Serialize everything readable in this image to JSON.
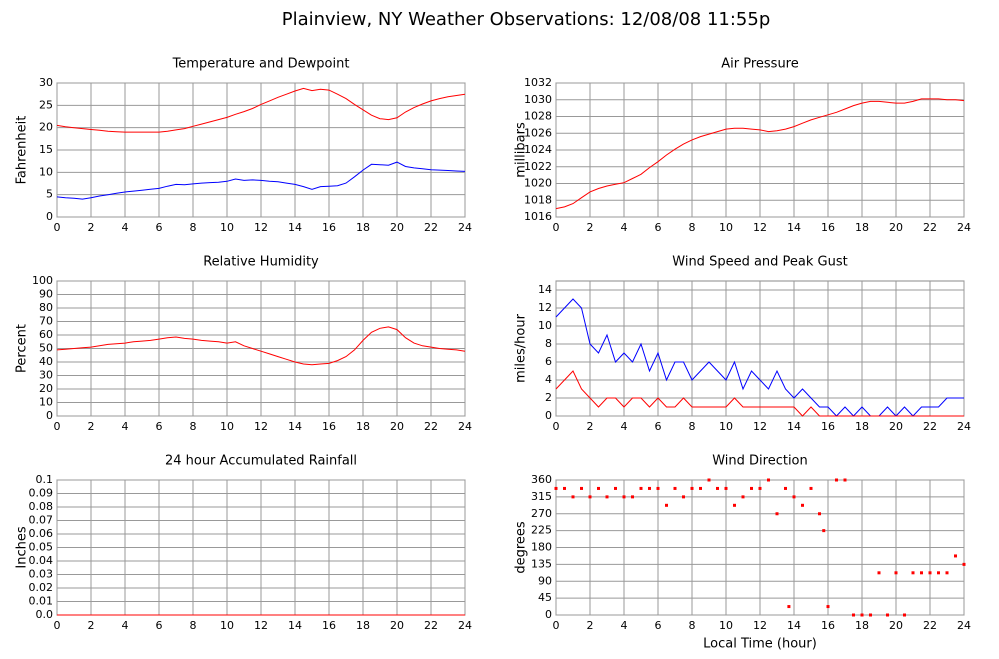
{
  "title": "Plainview, NY Weather Observations: 12/08/08 11:55p",
  "chart_data": [
    {
      "type": "line",
      "title": "Temperature and Dewpoint",
      "ylabel": "Fahrenheit",
      "grid": true,
      "xlim": [
        0,
        24
      ],
      "xticks": [
        0,
        2,
        4,
        6,
        8,
        10,
        12,
        14,
        16,
        18,
        20,
        22,
        24
      ],
      "ylim": [
        0,
        30
      ],
      "yticks": [
        0,
        5,
        10,
        15,
        20,
        25,
        30
      ],
      "x": [
        0,
        0.5,
        1,
        1.5,
        2,
        2.5,
        3,
        3.5,
        4,
        4.5,
        5,
        5.5,
        6,
        6.5,
        7,
        7.5,
        8,
        8.5,
        9,
        9.5,
        10,
        10.5,
        11,
        11.5,
        12,
        12.5,
        13,
        13.5,
        14,
        14.5,
        15,
        15.5,
        16,
        16.5,
        17,
        17.5,
        18,
        18.5,
        19,
        19.5,
        20,
        20.5,
        21,
        21.5,
        22,
        22.5,
        23,
        23.5,
        24
      ],
      "series": [
        {
          "color": "#ff0000",
          "values": [
            20.5,
            20.2,
            20,
            19.8,
            19.6,
            19.4,
            19.2,
            19.1,
            19,
            19,
            19,
            19,
            19,
            19.2,
            19.5,
            19.8,
            20.3,
            20.8,
            21.3,
            21.8,
            22.3,
            23,
            23.6,
            24.3,
            25.2,
            26,
            26.8,
            27.5,
            28.2,
            28.8,
            28.3,
            28.6,
            28.4,
            27.5,
            26.5,
            25.2,
            24,
            22.8,
            22,
            21.8,
            22.2,
            23.5,
            24.5,
            25.3,
            26,
            26.5,
            26.9,
            27.2,
            27.5
          ]
        },
        {
          "color": "#0000ff",
          "values": [
            4.5,
            4.3,
            4.2,
            4,
            4.3,
            4.7,
            5,
            5.3,
            5.6,
            5.8,
            6,
            6.2,
            6.4,
            6.9,
            7.3,
            7.2,
            7.4,
            7.6,
            7.7,
            7.8,
            8,
            8.5,
            8.2,
            8.3,
            8.2,
            8,
            7.9,
            7.6,
            7.3,
            6.8,
            6.2,
            6.8,
            6.9,
            7,
            7.6,
            9,
            10.5,
            11.8,
            11.7,
            11.6,
            12.3,
            11.3,
            11,
            10.8,
            10.6,
            10.5,
            10.4,
            10.3,
            10.2
          ]
        }
      ]
    },
    {
      "type": "line",
      "title": "Air Pressure",
      "ylabel": "millibars",
      "grid": true,
      "xlim": [
        0,
        24
      ],
      "xticks": [
        0,
        2,
        4,
        6,
        8,
        10,
        12,
        14,
        16,
        18,
        20,
        22,
        24
      ],
      "ylim": [
        1016,
        1032
      ],
      "yticks": [
        1016,
        1018,
        1020,
        1022,
        1024,
        1026,
        1028,
        1030,
        1032
      ],
      "x": [
        0,
        0.5,
        1,
        1.5,
        2,
        2.5,
        3,
        3.5,
        4,
        4.5,
        5,
        5.5,
        6,
        6.5,
        7,
        7.5,
        8,
        8.5,
        9,
        9.5,
        10,
        10.5,
        11,
        11.5,
        12,
        12.5,
        13,
        13.5,
        14,
        14.5,
        15,
        15.5,
        16,
        16.5,
        17,
        17.5,
        18,
        18.5,
        19,
        19.5,
        20,
        20.5,
        21,
        21.5,
        22,
        22.5,
        23,
        23.5,
        24
      ],
      "series": [
        {
          "color": "#ff0000",
          "values": [
            1017,
            1017.2,
            1017.6,
            1018.3,
            1019,
            1019.4,
            1019.7,
            1019.9,
            1020.1,
            1020.6,
            1021.1,
            1021.9,
            1022.6,
            1023.4,
            1024.1,
            1024.7,
            1025.2,
            1025.6,
            1025.9,
            1026.2,
            1026.5,
            1026.6,
            1026.6,
            1026.5,
            1026.4,
            1026.2,
            1026.3,
            1026.5,
            1026.8,
            1027.2,
            1027.6,
            1027.9,
            1028.2,
            1028.5,
            1028.9,
            1029.3,
            1029.6,
            1029.8,
            1029.8,
            1029.7,
            1029.6,
            1029.6,
            1029.8,
            1030.1,
            1030.1,
            1030.1,
            1030,
            1030,
            1029.9
          ]
        }
      ]
    },
    {
      "type": "line",
      "title": "Relative Humidity",
      "ylabel": "Percent",
      "grid": true,
      "xlim": [
        0,
        24
      ],
      "xticks": [
        0,
        2,
        4,
        6,
        8,
        10,
        12,
        14,
        16,
        18,
        20,
        22,
        24
      ],
      "ylim": [
        0,
        100
      ],
      "yticks": [
        0,
        10,
        20,
        30,
        40,
        50,
        60,
        70,
        80,
        90,
        100
      ],
      "x": [
        0,
        0.5,
        1,
        1.5,
        2,
        2.5,
        3,
        3.5,
        4,
        4.5,
        5,
        5.5,
        6,
        6.5,
        7,
        7.5,
        8,
        8.5,
        9,
        9.5,
        10,
        10.5,
        11,
        11.5,
        12,
        12.5,
        13,
        13.5,
        14,
        14.5,
        15,
        15.5,
        16,
        16.5,
        17,
        17.5,
        18,
        18.5,
        19,
        19.5,
        20,
        20.5,
        21,
        21.5,
        22,
        22.5,
        23,
        23.5,
        24
      ],
      "series": [
        {
          "color": "#ff0000",
          "values": [
            49,
            49.5,
            50,
            50.5,
            51,
            52,
            53,
            53.5,
            54,
            55,
            55.5,
            56,
            57,
            58,
            58.5,
            57.5,
            57,
            56,
            55.5,
            55,
            54,
            55,
            52,
            50,
            48,
            46,
            44,
            42,
            40,
            38.5,
            38,
            38.5,
            39,
            41,
            44,
            49,
            56,
            62,
            65,
            66,
            64,
            58,
            54,
            52,
            51,
            50,
            49.5,
            49,
            48
          ]
        }
      ]
    },
    {
      "type": "line",
      "title": "Wind Speed and Peak Gust",
      "ylabel": "miles/hour",
      "grid": true,
      "xlim": [
        0,
        24
      ],
      "xticks": [
        0,
        2,
        4,
        6,
        8,
        10,
        12,
        14,
        16,
        18,
        20,
        22,
        24
      ],
      "ylim": [
        0,
        15
      ],
      "yticks": [
        0,
        2,
        4,
        6,
        8,
        10,
        12,
        14
      ],
      "x": [
        0,
        0.5,
        1,
        1.5,
        2,
        2.5,
        3,
        3.5,
        4,
        4.5,
        5,
        5.5,
        6,
        6.5,
        7,
        7.5,
        8,
        8.5,
        9,
        9.5,
        10,
        10.5,
        11,
        11.5,
        12,
        12.5,
        13,
        13.5,
        14,
        14.5,
        15,
        15.5,
        16,
        16.5,
        17,
        17.5,
        18,
        18.5,
        19,
        19.5,
        20,
        20.5,
        21,
        21.5,
        22,
        22.5,
        23,
        23.5,
        24
      ],
      "series": [
        {
          "color": "#0000ff",
          "values": [
            11,
            12,
            13,
            12,
            8,
            7,
            9,
            6,
            7,
            6,
            8,
            5,
            7,
            4,
            6,
            6,
            4,
            5,
            6,
            5,
            4,
            6,
            3,
            5,
            4,
            3,
            5,
            3,
            2,
            3,
            2,
            1,
            1,
            0,
            1,
            0,
            1,
            0,
            0,
            1,
            0,
            1,
            0,
            1,
            1,
            1,
            2,
            2,
            2
          ]
        },
        {
          "color": "#ff0000",
          "values": [
            3,
            4,
            5,
            3,
            2,
            1,
            2,
            2,
            1,
            2,
            2,
            1,
            2,
            1,
            1,
            2,
            1,
            1,
            1,
            1,
            1,
            2,
            1,
            1,
            1,
            1,
            1,
            1,
            1,
            0,
            1,
            0,
            0,
            0,
            0,
            0,
            0,
            0,
            0,
            0,
            0,
            0,
            0,
            0,
            0,
            0,
            0,
            0,
            0
          ]
        }
      ]
    },
    {
      "type": "line",
      "title": "24 hour Accumulated Rainfall",
      "ylabel": "Inches",
      "grid": true,
      "xlim": [
        0,
        24
      ],
      "xticks": [
        0,
        2,
        4,
        6,
        8,
        10,
        12,
        14,
        16,
        18,
        20,
        22,
        24
      ],
      "ylim": [
        0,
        0.1
      ],
      "yticks": [
        {
          "value": 0,
          "label": "0.0"
        },
        0.01,
        0.02,
        0.03,
        0.04,
        0.05,
        0.06,
        0.07,
        0.08,
        0.09,
        0.1
      ],
      "x": [
        0,
        24
      ],
      "series": [
        {
          "color": "#ff0000",
          "values": [
            0,
            0
          ]
        }
      ]
    },
    {
      "type": "scatter",
      "title": "Wind Direction",
      "ylabel": "degrees",
      "xlabel": "Local Time (hour)",
      "grid": true,
      "xlim": [
        0,
        24
      ],
      "xticks": [
        0,
        2,
        4,
        6,
        8,
        10,
        12,
        14,
        16,
        18,
        20,
        22,
        24
      ],
      "ylim": [
        0,
        360
      ],
      "yticks": [
        0,
        45,
        90,
        135,
        180,
        225,
        270,
        315,
        360
      ],
      "x": [
        0,
        0.5,
        1,
        1.5,
        2,
        2.5,
        3,
        3.5,
        4,
        4.5,
        5,
        5.5,
        6,
        6.5,
        7,
        7.5,
        8,
        8.5,
        9,
        9.5,
        10,
        10.5,
        11,
        11.5,
        12,
        12.5,
        13,
        13.5,
        13.7,
        14,
        14.5,
        15,
        15.5,
        15.75,
        16,
        16.5,
        17,
        17.5,
        18,
        18.5,
        19,
        19.5,
        20,
        20.5,
        21,
        21.5,
        22,
        22.5,
        23,
        23.5,
        24
      ],
      "series": [
        {
          "color": "#ff0000",
          "values": [
            337.5,
            337.5,
            315,
            337.5,
            315,
            337.5,
            315,
            337.5,
            315,
            315,
            337.5,
            337.5,
            337.5,
            292.5,
            337.5,
            315,
            337.5,
            337.5,
            360,
            337.5,
            337.5,
            292.5,
            315,
            337.5,
            337.5,
            360,
            270,
            337.5,
            22.5,
            315,
            292.5,
            337.5,
            270,
            225,
            22.5,
            360,
            360,
            0,
            0,
            0,
            112.5,
            0,
            112.5,
            0,
            112.5,
            112.5,
            112.5,
            112.5,
            112.5,
            157.5,
            135
          ]
        }
      ]
    }
  ]
}
